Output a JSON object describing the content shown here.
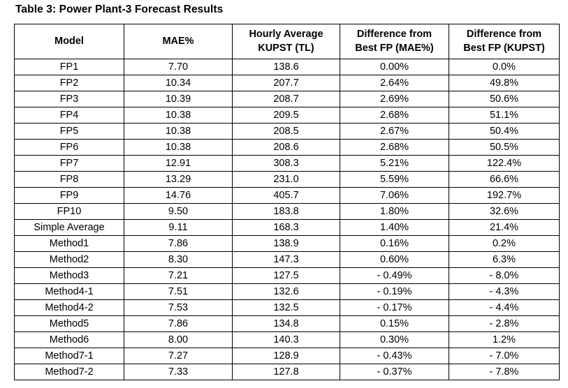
{
  "caption": "Table 3: Power Plant-3 Forecast Results",
  "table": {
    "headers": [
      "Model",
      "MAE%",
      "Hourly Average\nKUPST (TL)",
      "Difference from\nBest FP (MAE%)",
      "Difference from\nBest FP (KUPST)"
    ],
    "rows": [
      {
        "model": "FP1",
        "mae": "7.70",
        "kupst": "138.6",
        "diff_mae": "0.00%",
        "diff_kupst": "0.0%"
      },
      {
        "model": "FP2",
        "mae": "10.34",
        "kupst": "207.7",
        "diff_mae": "2.64%",
        "diff_kupst": "49.8%"
      },
      {
        "model": "FP3",
        "mae": "10.39",
        "kupst": "208.7",
        "diff_mae": "2.69%",
        "diff_kupst": "50.6%"
      },
      {
        "model": "FP4",
        "mae": "10.38",
        "kupst": "209.5",
        "diff_mae": "2.68%",
        "diff_kupst": "51.1%"
      },
      {
        "model": "FP5",
        "mae": "10.38",
        "kupst": "208.5",
        "diff_mae": "2.67%",
        "diff_kupst": "50.4%"
      },
      {
        "model": "FP6",
        "mae": "10.38",
        "kupst": "208.6",
        "diff_mae": "2.68%",
        "diff_kupst": "50.5%"
      },
      {
        "model": "FP7",
        "mae": "12.91",
        "kupst": "308.3",
        "diff_mae": "5.21%",
        "diff_kupst": "122.4%"
      },
      {
        "model": "FP8",
        "mae": "13.29",
        "kupst": "231.0",
        "diff_mae": "5.59%",
        "diff_kupst": "66.6%"
      },
      {
        "model": "FP9",
        "mae": "14.76",
        "kupst": "405.7",
        "diff_mae": "7.06%",
        "diff_kupst": "192.7%"
      },
      {
        "model": "FP10",
        "mae": "9.50",
        "kupst": "183.8",
        "diff_mae": "1.80%",
        "diff_kupst": "32.6%"
      },
      {
        "model": "Simple Average",
        "mae": "9.11",
        "kupst": "168.3",
        "diff_mae": "1.40%",
        "diff_kupst": "21.4%"
      },
      {
        "model": "Method1",
        "mae": "7.86",
        "kupst": "138.9",
        "diff_mae": "0.16%",
        "diff_kupst": "0.2%"
      },
      {
        "model": "Method2",
        "mae": "8.30",
        "kupst": "147.3",
        "diff_mae": "0.60%",
        "diff_kupst": "6.3%"
      },
      {
        "model": "Method3",
        "mae": "7.21",
        "kupst": "127.5",
        "diff_mae": "- 0.49%",
        "diff_kupst": "- 8.0%"
      },
      {
        "model": "Method4-1",
        "mae": "7.51",
        "kupst": "132.6",
        "diff_mae": "- 0.19%",
        "diff_kupst": "- 4.3%"
      },
      {
        "model": "Method4-2",
        "mae": "7.53",
        "kupst": "132.5",
        "diff_mae": "- 0.17%",
        "diff_kupst": "- 4.4%"
      },
      {
        "model": "Method5",
        "mae": "7.86",
        "kupst": "134.8",
        "diff_mae": "0.15%",
        "diff_kupst": "- 2.8%"
      },
      {
        "model": "Method6",
        "mae": "8.00",
        "kupst": "140.3",
        "diff_mae": "0.30%",
        "diff_kupst": "1.2%"
      },
      {
        "model": "Method7-1",
        "mae": "7.27",
        "kupst": "128.9",
        "diff_mae": "- 0.43%",
        "diff_kupst": "- 7.0%"
      },
      {
        "model": "Method7-2",
        "mae": "7.33",
        "kupst": "127.8",
        "diff_mae": "- 0.37%",
        "diff_kupst": "- 7.8%"
      }
    ]
  }
}
